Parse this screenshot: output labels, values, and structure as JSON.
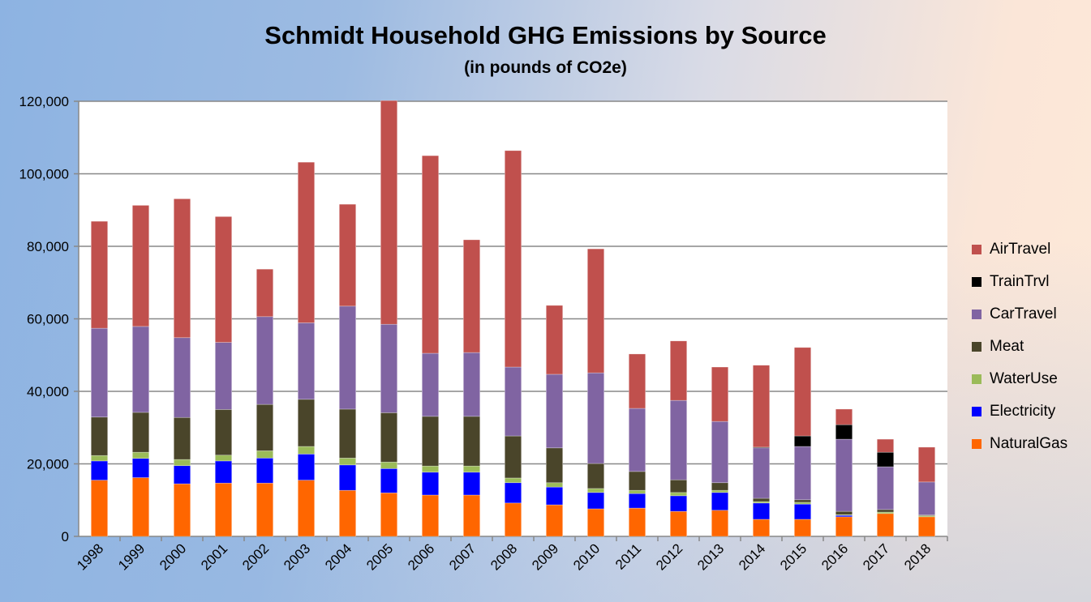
{
  "chart_data": {
    "type": "bar",
    "stacked": true,
    "title": "Schmidt Household GHG Emissions by Source",
    "subtitle": "(in pounds of CO2e)",
    "xlabel": "",
    "ylabel": "",
    "ylim": [
      0,
      120000
    ],
    "yticks": [
      "0",
      "20,000",
      "40,000",
      "60,000",
      "80,000",
      "100,000",
      "120,000"
    ],
    "grid": true,
    "legend_position": "right",
    "categories": [
      "1998",
      "1999",
      "2000",
      "2001",
      "2002",
      "2003",
      "2004",
      "2005",
      "2006",
      "2007",
      "2008",
      "2009",
      "2010",
      "2011",
      "2012",
      "2013",
      "2014",
      "2015",
      "2016",
      "2017",
      "2018"
    ],
    "series": [
      {
        "name": "NaturalGas",
        "color": "#ff6600",
        "values": [
          15500,
          16200,
          14500,
          14700,
          14700,
          15500,
          12700,
          12000,
          11400,
          11400,
          9200,
          8700,
          7600,
          7800,
          6900,
          7200,
          4700,
          4700,
          5400,
          6300,
          5400
        ]
      },
      {
        "name": "Electricity",
        "color": "#0000ff",
        "values": [
          5300,
          5300,
          5000,
          6100,
          6900,
          7200,
          7000,
          6700,
          6300,
          6300,
          5600,
          4900,
          4500,
          4000,
          4300,
          4900,
          4500,
          4200,
          400,
          0,
          0
        ]
      },
      {
        "name": "WaterUse",
        "color": "#9bbb59",
        "values": [
          1500,
          1700,
          1700,
          1600,
          2000,
          2100,
          1900,
          1800,
          1700,
          1700,
          1300,
          1200,
          1100,
          900,
          900,
          600,
          400,
          500,
          200,
          400,
          300
        ]
      },
      {
        "name": "Meat",
        "color": "#4a452a",
        "values": [
          10600,
          11000,
          11600,
          12600,
          12800,
          13000,
          13500,
          13600,
          13700,
          13700,
          11600,
          9600,
          6900,
          5200,
          3500,
          2100,
          900,
          700,
          900,
          700,
          200
        ]
      },
      {
        "name": "CarTravel",
        "color": "#8064a2",
        "values": [
          24500,
          23700,
          22000,
          18500,
          24200,
          21100,
          28400,
          24400,
          17400,
          17600,
          19000,
          20300,
          25000,
          17400,
          21900,
          16900,
          13900,
          14700,
          19900,
          11800,
          9100
        ]
      },
      {
        "name": "TrainTrvl",
        "color": "#000000",
        "values": [
          0,
          0,
          0,
          0,
          0,
          0,
          0,
          0,
          0,
          0,
          0,
          0,
          0,
          0,
          0,
          0,
          200,
          2900,
          4000,
          4000,
          0
        ]
      },
      {
        "name": "AirTravel",
        "color": "#c0504d",
        "values": [
          29500,
          33400,
          38300,
          34700,
          13100,
          44300,
          28100,
          61700,
          54500,
          31100,
          59700,
          19000,
          34200,
          15000,
          16400,
          15000,
          22600,
          24400,
          4300,
          3600,
          9600
        ]
      }
    ]
  }
}
